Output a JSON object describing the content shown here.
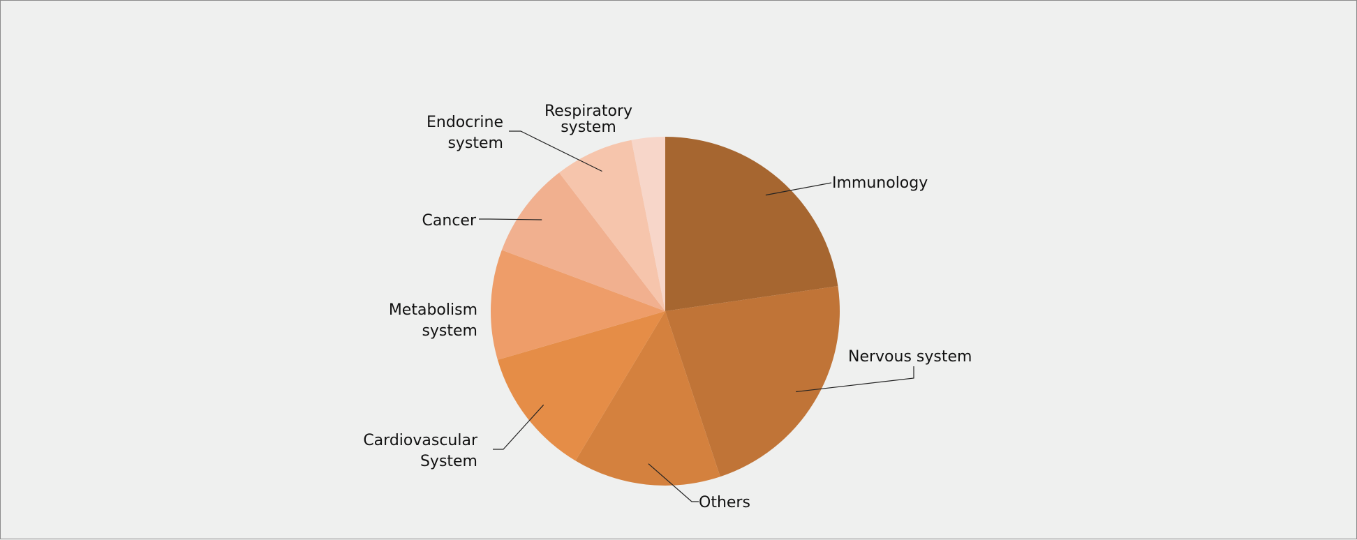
{
  "chart_data": {
    "type": "pie",
    "title": "",
    "start": "12 o'clock",
    "direction": "clockwise",
    "legend": "none",
    "slices": [
      {
        "label": "Immunology",
        "value": 22.7,
        "color": "#a66630"
      },
      {
        "label": "Nervous system",
        "value": 22.2,
        "color": "#c07437"
      },
      {
        "label": "Others",
        "value": 13.7,
        "color": "#d4813e"
      },
      {
        "label": "Cardiovascular System",
        "value": 11.9,
        "color": "#e58d47"
      },
      {
        "label": "Metabolism system",
        "value": 10.2,
        "color": "#ee9d69"
      },
      {
        "label": "Cancer",
        "value": 8.9,
        "color": "#f1b08f"
      },
      {
        "label": "Endocrine system",
        "value": 7.3,
        "color": "#f6c5ac"
      },
      {
        "label": "Respiratory system",
        "value": 3.1,
        "color": "#f7d6c9"
      }
    ]
  }
}
